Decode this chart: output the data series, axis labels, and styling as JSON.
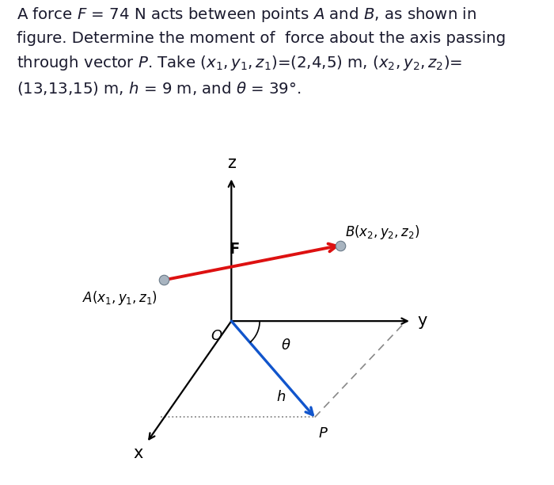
{
  "title_lines": [
    "A force $\\mathit{F}$ = 74 N acts between points $\\mathit{A}$ and $\\mathit{B}$, as shown in",
    "figure. Determine the moment of  force about the axis passing",
    "through vector $\\mathit{P}$. Take $(x_1, y_1, z_1)$=(2,4,5) m, $(x_2, y_2, z_2)$=",
    "(13,13,15) m, $\\mathit{h}$ = 9 m, and $\\theta$ = 39°."
  ],
  "text_color": "#1a1a2e",
  "axis_color": "#000000",
  "red_color": "#dd1111",
  "blue_color": "#1155cc",
  "dashed_color": "#888888",
  "bg_color": "#ffffff",
  "node_color": "#a8b4c0",
  "node_edge_color": "#6a7a88"
}
